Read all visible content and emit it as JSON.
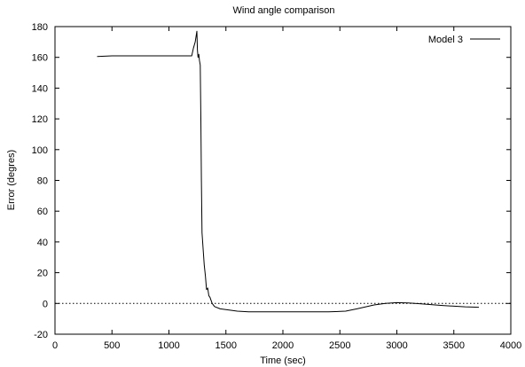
{
  "chart_data": {
    "type": "line",
    "title": "Wind angle comparison",
    "xlabel": "Time (sec)",
    "ylabel": "Error (degres)",
    "xlim": [
      0,
      4000
    ],
    "ylim": [
      -20,
      180
    ],
    "xticks": [
      0,
      500,
      1000,
      1500,
      2000,
      2500,
      3000,
      3500,
      4000
    ],
    "yticks": [
      -20,
      0,
      20,
      40,
      60,
      80,
      100,
      120,
      140,
      160,
      180
    ],
    "x_tick_labels": [
      "0",
      "500",
      "1000",
      "1500",
      "2000",
      "2500",
      "3000",
      "3500",
      "4000"
    ],
    "y_tick_labels": [
      "-20",
      "0",
      "20",
      "40",
      "60",
      "80",
      "100",
      "120",
      "140",
      "160",
      "180"
    ],
    "grid": false,
    "legend": {
      "position": "top-right"
    },
    "reference_line": {
      "y": 0,
      "style": "dotted"
    },
    "series": [
      {
        "name": "Model 3",
        "color": "#000000",
        "x": [
          370,
          500,
          700,
          900,
          1100,
          1200,
          1215,
          1230,
          1245,
          1250,
          1255,
          1262,
          1268,
          1275,
          1280,
          1285,
          1290,
          1300,
          1310,
          1320,
          1330,
          1340,
          1350,
          1360,
          1370,
          1380,
          1400,
          1450,
          1500,
          1600,
          1700,
          1800,
          2000,
          2200,
          2400,
          2550,
          2650,
          2800,
          2900,
          3000,
          3100,
          3200,
          3400,
          3600,
          3720
        ],
        "y": [
          160.5,
          161,
          161,
          161,
          161,
          161,
          166,
          170,
          177,
          165,
          160,
          162,
          158,
          155,
          120,
          80,
          46,
          35,
          25,
          18,
          9,
          10,
          5,
          4,
          2,
          0,
          -2,
          -3.5,
          -4,
          -5,
          -5.5,
          -5.5,
          -5.5,
          -5.5,
          -5.5,
          -5,
          -3.5,
          -1,
          0,
          0.5,
          0.3,
          -0.2,
          -1.3,
          -2.2,
          -2.5
        ]
      }
    ]
  }
}
